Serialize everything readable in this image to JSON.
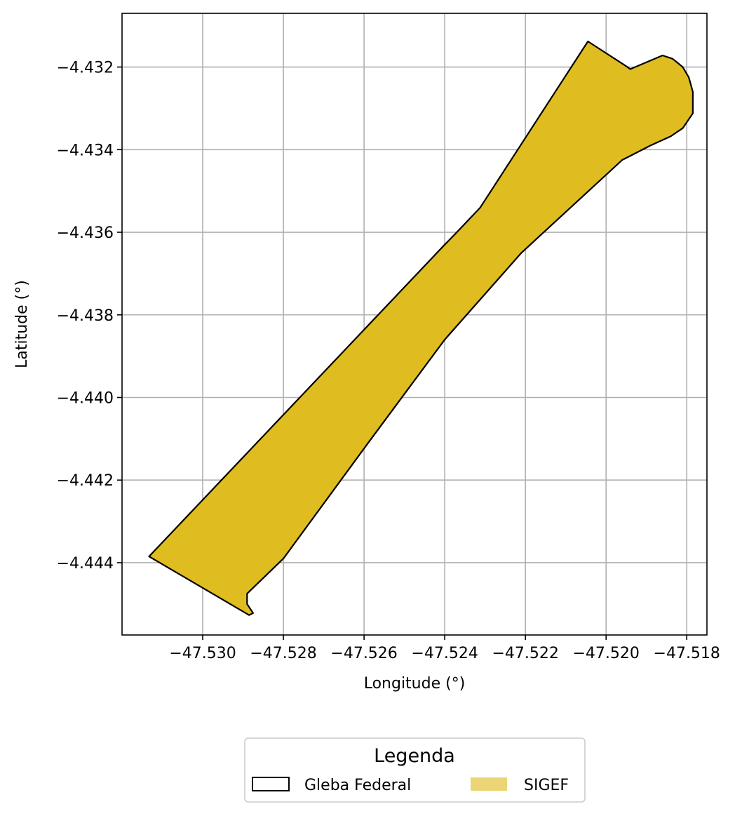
{
  "chart_data": {
    "type": "map",
    "xlabel": "Longitude (°)",
    "ylabel": "Latitude (°)",
    "xlim": [
      -47.532,
      -47.5175
    ],
    "ylim": [
      -4.44575,
      -4.4307
    ],
    "x_ticks": [
      -47.53,
      -47.528,
      -47.526,
      -47.524,
      -47.522,
      -47.52,
      -47.518
    ],
    "x_tick_labels": [
      "−47.530",
      "−47.528",
      "−47.526",
      "−47.524",
      "−47.522",
      "−47.520",
      "−47.518"
    ],
    "y_ticks": [
      -4.432,
      -4.434,
      -4.436,
      -4.438,
      -4.44,
      -4.442,
      -4.444
    ],
    "y_tick_labels": [
      "−4.432",
      "−4.434",
      "−4.436",
      "−4.438",
      "−4.440",
      "−4.442",
      "−4.444"
    ],
    "grid": true,
    "legend": {
      "title": "Legenda",
      "placement": "bottom-center",
      "entries": [
        {
          "label": "Gleba Federal",
          "fill": "none",
          "edge": "#000000"
        },
        {
          "label": "SIGEF",
          "fill": "#ebd575",
          "edge": "none"
        }
      ]
    },
    "polygon": {
      "name": "SIGEF",
      "fill": "#dfbd20",
      "edge": "#000000",
      "coords": [
        [
          -47.53133,
          -4.44385
        ],
        [
          -47.52885,
          -4.44527
        ],
        [
          -47.52875,
          -4.44522
        ],
        [
          -47.5289,
          -4.445
        ],
        [
          -47.5289,
          -4.44475
        ],
        [
          -47.528,
          -4.4439
        ],
        [
          -47.5259,
          -4.4411
        ],
        [
          -47.524,
          -4.4386
        ],
        [
          -47.5221,
          -4.4365
        ],
        [
          -47.5196,
          -4.43425
        ],
        [
          -47.5189,
          -4.4339
        ],
        [
          -47.5184,
          -4.43368
        ],
        [
          -47.5181,
          -4.43348
        ],
        [
          -47.51785,
          -4.43312
        ],
        [
          -47.51785,
          -4.4326
        ],
        [
          -47.51795,
          -4.43225
        ],
        [
          -47.5181,
          -4.432
        ],
        [
          -47.51835,
          -4.4318
        ],
        [
          -47.5186,
          -4.43172
        ],
        [
          -47.5194,
          -4.43205
        ],
        [
          -47.5195,
          -4.43198
        ],
        [
          -47.52045,
          -4.43138
        ],
        [
          -47.52312,
          -4.4354
        ],
        [
          -47.5237,
          -4.436
        ],
        [
          -47.524,
          -4.4363
        ]
      ]
    }
  }
}
